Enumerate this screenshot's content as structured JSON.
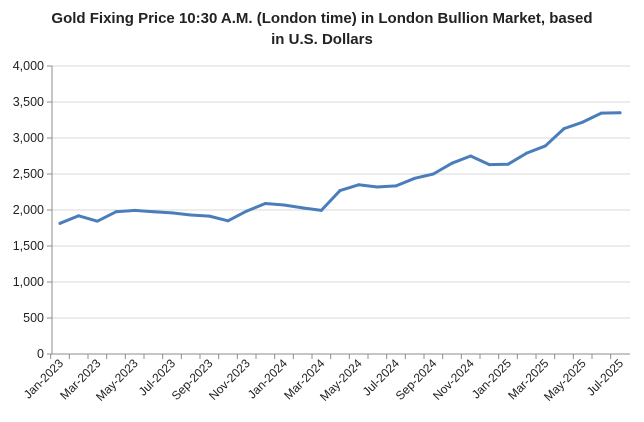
{
  "chart_data": {
    "type": "line",
    "title_lines": [
      "Gold Fixing Price 10:30 A.M. (London time) in London Bullion Market, based",
      "in U.S. Dollars"
    ],
    "xlabel": "",
    "ylabel": "",
    "ylim": [
      0,
      4000
    ],
    "y_ticks": [
      0,
      500,
      1000,
      1500,
      2000,
      2500,
      3000,
      3500,
      4000
    ],
    "y_tick_labels": [
      "0",
      "500",
      "1,000",
      "1,500",
      "2,000",
      "2,500",
      "3,000",
      "3,500",
      "4,000"
    ],
    "x_tick_labels": [
      "Jan-2023",
      "Mar-2023",
      "May-2023",
      "Jul-2023",
      "Sep-2023",
      "Nov-2023",
      "Jan-2024",
      "Mar-2024",
      "May-2024",
      "Jul-2024",
      "Sep-2024",
      "Nov-2024",
      "Jan-2025",
      "Mar-2025",
      "May-2025",
      "Jul-2025"
    ],
    "grid": true,
    "legend": "none",
    "line_color": "#4a7ebb",
    "categories": [
      "Jan-2023",
      "Feb-2023",
      "Mar-2023",
      "Apr-2023",
      "May-2023",
      "Jun-2023",
      "Jul-2023",
      "Aug-2023",
      "Sep-2023",
      "Oct-2023",
      "Nov-2023",
      "Dec-2023",
      "Jan-2024",
      "Feb-2024",
      "Mar-2024",
      "Apr-2024",
      "May-2024",
      "Jun-2024",
      "Jul-2024",
      "Aug-2024",
      "Sep-2024",
      "Oct-2024",
      "Nov-2024",
      "Dec-2024",
      "Jan-2025",
      "Feb-2025",
      "Mar-2025",
      "Apr-2025",
      "May-2025",
      "Jun-2025",
      "Jul-2025"
    ],
    "values": [
      1815,
      1920,
      1845,
      1975,
      1995,
      1975,
      1960,
      1930,
      1915,
      1850,
      1985,
      2090,
      2070,
      2030,
      1995,
      2270,
      2350,
      2320,
      2335,
      2440,
      2500,
      2650,
      2750,
      2630,
      2635,
      2790,
      2890,
      3130,
      3220,
      3345,
      3350
    ]
  }
}
